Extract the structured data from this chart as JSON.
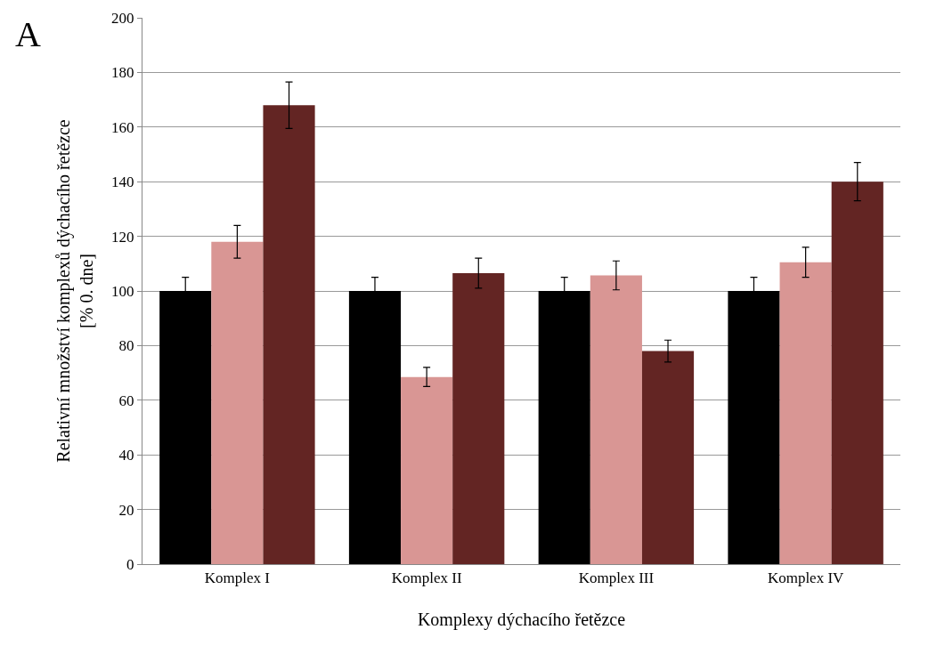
{
  "chart_data": {
    "type": "bar",
    "xlabel": "Komplexy dýchacího řetězce",
    "ylabel": "Relativní množství komplexů dýchacího řetězce\n[% 0. dne]",
    "annotations": [
      "A"
    ],
    "categories": [
      "Komplex I",
      "Komplex II",
      "Komplex III",
      "Komplex IV"
    ],
    "series": [
      {
        "color": "#000000",
        "values": [
          100,
          100,
          100,
          100
        ],
        "errors": [
          5,
          5,
          5,
          5
        ]
      },
      {
        "color": "#d99694",
        "values": [
          118,
          68.5,
          105.7,
          110.5
        ],
        "errors": [
          6,
          3.5,
          5.3,
          5.5
        ]
      },
      {
        "color": "#632523",
        "values": [
          168,
          106.5,
          78,
          140
        ],
        "errors": [
          8.5,
          5.5,
          4,
          7
        ]
      }
    ],
    "ylim": [
      0,
      200
    ],
    "yticks": [
      0,
      20,
      40,
      60,
      80,
      100,
      120,
      140,
      160,
      180,
      200
    ],
    "grid": "y"
  }
}
